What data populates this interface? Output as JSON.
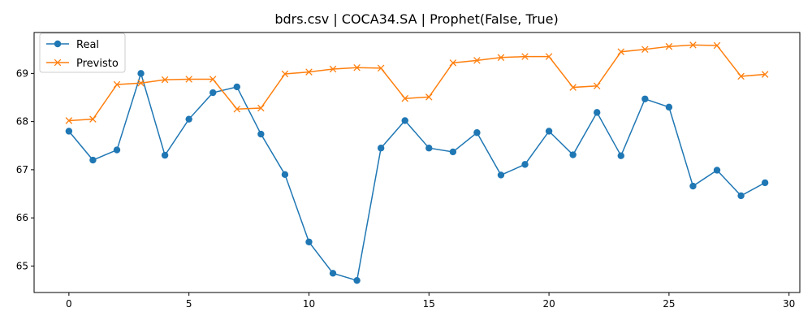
{
  "chart_data": {
    "type": "line",
    "title": "bdrs.csv | COCA34.SA | Prophet(False, True)",
    "xlabel": "",
    "ylabel": "",
    "x": [
      0,
      1,
      2,
      3,
      4,
      5,
      6,
      7,
      8,
      9,
      10,
      11,
      12,
      13,
      14,
      15,
      16,
      17,
      18,
      19,
      20,
      21,
      22,
      23,
      24,
      25,
      26,
      27,
      28,
      29
    ],
    "xlim": [
      -1.45,
      30.45
    ],
    "ylim": [
      64.45,
      69.85
    ],
    "xticks": [
      0,
      5,
      10,
      15,
      20,
      25,
      30
    ],
    "yticks": [
      65,
      66,
      67,
      68,
      69
    ],
    "xtick_labels": [
      "0",
      "5",
      "10",
      "15",
      "20",
      "25",
      "30"
    ],
    "ytick_labels": [
      "65",
      "66",
      "67",
      "68",
      "69"
    ],
    "grid": false,
    "legend_position": "upper-left",
    "series": [
      {
        "name": "Real",
        "color": "#1f77b4",
        "marker": "circle",
        "values": [
          67.8,
          67.2,
          67.41,
          69.0,
          67.3,
          68.05,
          68.6,
          68.72,
          67.74,
          66.9,
          65.5,
          64.85,
          64.7,
          67.45,
          68.02,
          67.45,
          67.37,
          67.77,
          66.89,
          67.11,
          67.8,
          67.31,
          68.19,
          67.29,
          68.47,
          68.3,
          66.66,
          66.99,
          66.46,
          66.73
        ]
      },
      {
        "name": "Previsto",
        "color": "#ff7f0e",
        "marker": "x",
        "values": [
          68.02,
          68.05,
          68.77,
          68.8,
          68.87,
          68.88,
          68.88,
          68.26,
          68.28,
          68.99,
          69.03,
          69.09,
          69.12,
          69.11,
          68.48,
          68.51,
          69.22,
          69.27,
          69.33,
          69.35,
          69.35,
          68.71,
          68.74,
          69.45,
          69.5,
          69.56,
          69.59,
          69.58,
          68.94,
          68.98
        ]
      }
    ]
  }
}
